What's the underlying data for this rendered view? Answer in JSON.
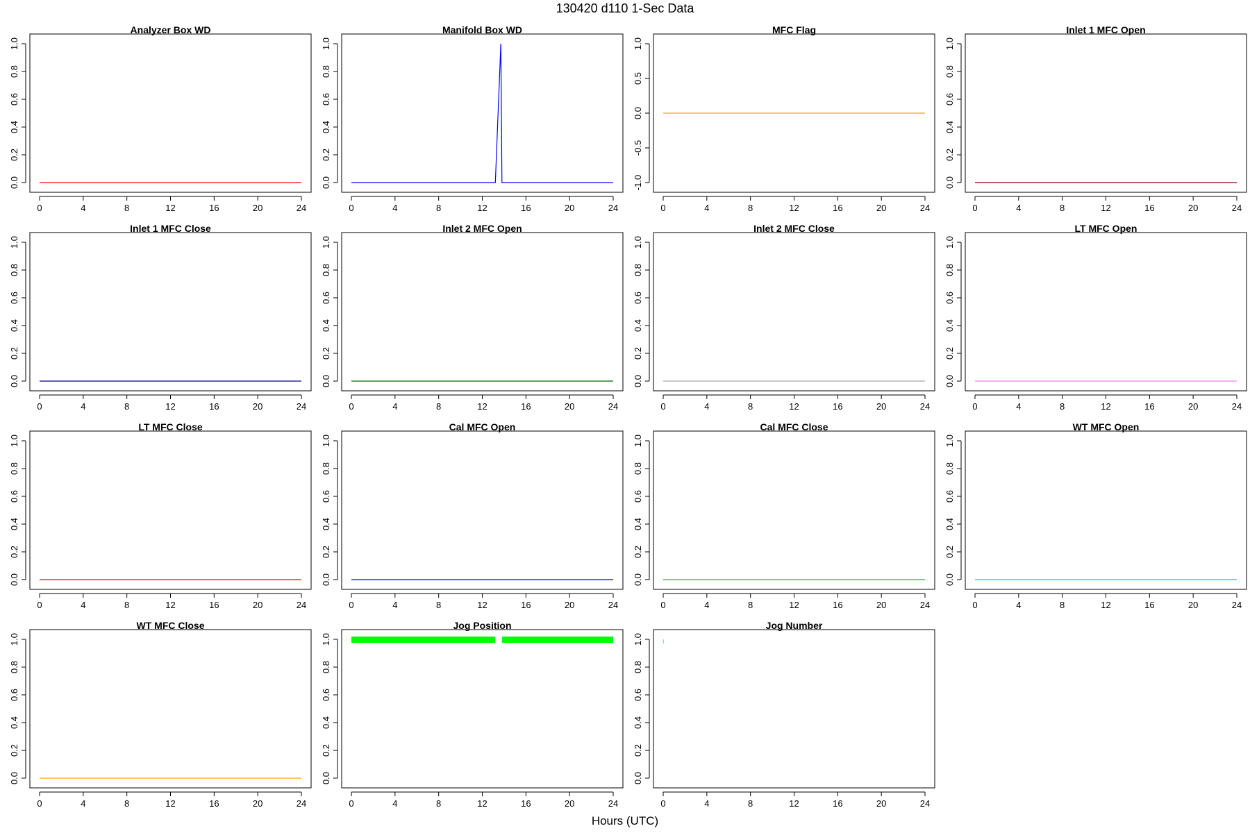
{
  "figure": {
    "title": "130420   d110   1-Sec Data",
    "xlabel": "Hours (UTC)"
  },
  "chart_data": [
    {
      "type": "line",
      "title": "Analyzer Box WD",
      "xlim": [
        0,
        24
      ],
      "ylim": [
        0,
        1
      ],
      "xticks": [
        0,
        4,
        8,
        12,
        16,
        20,
        24
      ],
      "yticks": [
        "0.0",
        "0.2",
        "0.4",
        "0.6",
        "0.8",
        "1.0"
      ],
      "color": "#ff0000",
      "x": [
        0,
        24
      ],
      "y": [
        0,
        0
      ]
    },
    {
      "type": "line",
      "title": "Manifold Box WD",
      "xlim": [
        0,
        24
      ],
      "ylim": [
        0,
        1
      ],
      "xticks": [
        0,
        4,
        8,
        12,
        16,
        20,
        24
      ],
      "yticks": [
        "0.0",
        "0.2",
        "0.4",
        "0.6",
        "0.8",
        "1.0"
      ],
      "color": "#0000ff",
      "x": [
        0,
        13.2,
        13.7,
        13.8,
        24
      ],
      "y": [
        0,
        0,
        1,
        0,
        0
      ]
    },
    {
      "type": "line",
      "title": "MFC Flag",
      "xlim": [
        0,
        24
      ],
      "ylim": [
        -1,
        1
      ],
      "xticks": [
        0,
        4,
        8,
        12,
        16,
        20,
        24
      ],
      "yticks": [
        "-1.0",
        "-0.5",
        "0.0",
        "0.5",
        "1.0"
      ],
      "color": "#ffa500",
      "x": [
        0,
        24
      ],
      "y": [
        0,
        0
      ]
    },
    {
      "type": "line",
      "title": "Inlet 1 MFC Open",
      "xlim": [
        0,
        24
      ],
      "ylim": [
        0,
        1
      ],
      "xticks": [
        0,
        4,
        8,
        12,
        16,
        20,
        24
      ],
      "yticks": [
        "0.0",
        "0.2",
        "0.4",
        "0.6",
        "0.8",
        "1.0"
      ],
      "color": "#8b0000",
      "x": [
        0,
        24
      ],
      "y": [
        0,
        0
      ]
    },
    {
      "type": "line",
      "title": "Inlet 1 MFC Close",
      "xlim": [
        0,
        24
      ],
      "ylim": [
        0,
        1
      ],
      "xticks": [
        0,
        4,
        8,
        12,
        16,
        20,
        24
      ],
      "yticks": [
        "0.0",
        "0.2",
        "0.4",
        "0.6",
        "0.8",
        "1.0"
      ],
      "color": "#00008b",
      "x": [
        0,
        24
      ],
      "y": [
        0,
        0
      ]
    },
    {
      "type": "line",
      "title": "Inlet 2 MFC Open",
      "xlim": [
        0,
        24
      ],
      "ylim": [
        0,
        1
      ],
      "xticks": [
        0,
        4,
        8,
        12,
        16,
        20,
        24
      ],
      "yticks": [
        "0.0",
        "0.2",
        "0.4",
        "0.6",
        "0.8",
        "1.0"
      ],
      "color": "#006400",
      "x": [
        0,
        24
      ],
      "y": [
        0,
        0
      ]
    },
    {
      "type": "line",
      "title": "Inlet 2 MFC Close",
      "xlim": [
        0,
        24
      ],
      "ylim": [
        0,
        1
      ],
      "xticks": [
        0,
        4,
        8,
        12,
        16,
        20,
        24
      ],
      "yticks": [
        "0.0",
        "0.2",
        "0.4",
        "0.6",
        "0.8",
        "1.0"
      ],
      "color": "#a9a9a9",
      "x": [
        0,
        24
      ],
      "y": [
        0,
        0
      ]
    },
    {
      "type": "line",
      "title": "LT MFC Open",
      "xlim": [
        0,
        24
      ],
      "ylim": [
        0,
        1
      ],
      "xticks": [
        0,
        4,
        8,
        12,
        16,
        20,
        24
      ],
      "yticks": [
        "0.0",
        "0.2",
        "0.4",
        "0.6",
        "0.8",
        "1.0"
      ],
      "color": "#ee82ee",
      "x": [
        0,
        24
      ],
      "y": [
        0,
        0
      ]
    },
    {
      "type": "line",
      "title": "LT MFC Close",
      "xlim": [
        0,
        24
      ],
      "ylim": [
        0,
        1
      ],
      "xticks": [
        0,
        4,
        8,
        12,
        16,
        20,
        24
      ],
      "yticks": [
        "0.0",
        "0.2",
        "0.4",
        "0.6",
        "0.8",
        "1.0"
      ],
      "color": "#ff0000",
      "x": [
        0,
        24
      ],
      "y": [
        0,
        0
      ]
    },
    {
      "type": "line",
      "title": "Cal MFC Open",
      "xlim": [
        0,
        24
      ],
      "ylim": [
        0,
        1
      ],
      "xticks": [
        0,
        4,
        8,
        12,
        16,
        20,
        24
      ],
      "yticks": [
        "0.0",
        "0.2",
        "0.4",
        "0.6",
        "0.8",
        "1.0"
      ],
      "color": "#0000ff",
      "x": [
        0,
        24
      ],
      "y": [
        0,
        0
      ]
    },
    {
      "type": "line",
      "title": "Cal MFC Close",
      "xlim": [
        0,
        24
      ],
      "ylim": [
        0,
        1
      ],
      "xticks": [
        0,
        4,
        8,
        12,
        16,
        20,
        24
      ],
      "yticks": [
        "0.0",
        "0.2",
        "0.4",
        "0.6",
        "0.8",
        "1.0"
      ],
      "color": "#00cc00",
      "x": [
        0,
        24
      ],
      "y": [
        0,
        0
      ]
    },
    {
      "type": "line",
      "title": "WT MFC Open",
      "xlim": [
        0,
        24
      ],
      "ylim": [
        0,
        1
      ],
      "xticks": [
        0,
        4,
        8,
        12,
        16,
        20,
        24
      ],
      "yticks": [
        "0.0",
        "0.2",
        "0.4",
        "0.6",
        "0.8",
        "1.0"
      ],
      "color": "#00ced1",
      "x": [
        0,
        24
      ],
      "y": [
        0,
        0
      ]
    },
    {
      "type": "line",
      "title": "WT MFC Close",
      "xlim": [
        0,
        24
      ],
      "ylim": [
        0,
        1
      ],
      "xticks": [
        0,
        4,
        8,
        12,
        16,
        20,
        24
      ],
      "yticks": [
        "0.0",
        "0.2",
        "0.4",
        "0.6",
        "0.8",
        "1.0"
      ],
      "color": "#ffa500",
      "x": [
        0,
        24
      ],
      "y": [
        0,
        0
      ]
    },
    {
      "type": "line",
      "title": "Jog Position",
      "xlim": [
        0,
        24
      ],
      "ylim": [
        0,
        1
      ],
      "xticks": [
        0,
        4,
        8,
        12,
        16,
        20,
        24
      ],
      "yticks": [
        "0.0",
        "0.2",
        "0.4",
        "0.6",
        "0.8",
        "1.0"
      ],
      "color": "#00ff00",
      "band": true,
      "x": [
        0,
        13.2,
        13.8,
        24
      ],
      "y": [
        1,
        1,
        1,
        1
      ],
      "segments": [
        [
          0,
          13.2
        ],
        [
          13.8,
          24
        ]
      ]
    },
    {
      "type": "line",
      "title": "Jog Number",
      "xlim": [
        0,
        24
      ],
      "ylim": [
        0,
        1
      ],
      "xticks": [
        0,
        4,
        8,
        12,
        16,
        20,
        24
      ],
      "yticks": [
        "0.0",
        "0.2",
        "0.4",
        "0.6",
        "0.8",
        "1.0"
      ],
      "color": "#87ceeb",
      "x": [
        0,
        0.05
      ],
      "y": [
        1,
        0.97
      ]
    }
  ]
}
